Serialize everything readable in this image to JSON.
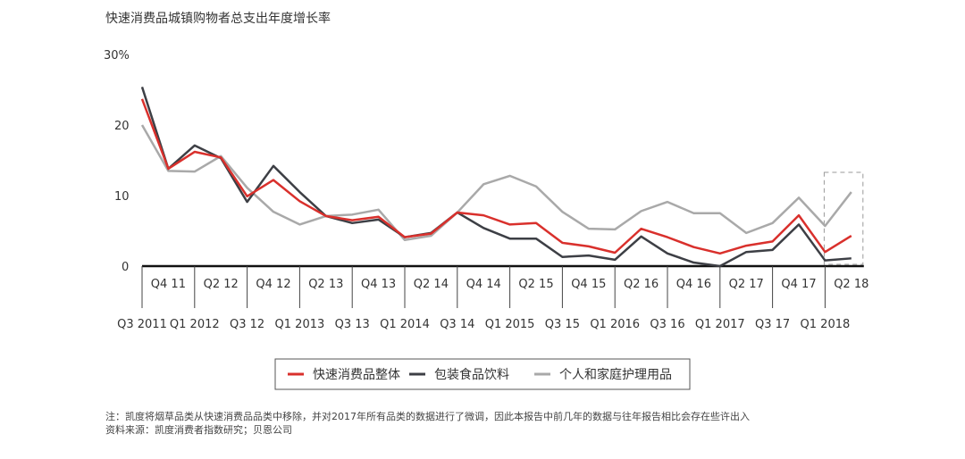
{
  "chart_data": {
    "type": "line",
    "title": "快速消费品城镇购物者总支出年度增长率",
    "ylabel": "",
    "xlabel": "",
    "ylim": [
      0,
      30
    ],
    "yticks": [
      "0",
      "10",
      "20",
      "30%"
    ],
    "grid": false,
    "legend_position": "bottom",
    "categories": [
      "Q3 2011",
      "Q4 11",
      "Q1 2012",
      "Q2 12",
      "Q3 12",
      "Q4 12",
      "Q1 2013",
      "Q2 13",
      "Q3 13",
      "Q4 13",
      "Q1 2014",
      "Q2 14",
      "Q3 14",
      "Q4 14",
      "Q1 2015",
      "Q2 15",
      "Q3 15",
      "Q4 15",
      "Q1 2016",
      "Q2 16",
      "Q3 16",
      "Q4 16",
      "Q1 2017",
      "Q2 17",
      "Q3 17",
      "Q4 17",
      "Q1 2018",
      "Q2 18"
    ],
    "series": [
      {
        "name": "快速消费品整体",
        "color": "#d9302c",
        "values": [
          23.7,
          13.8,
          16.2,
          15.4,
          9.9,
          12.2,
          9.2,
          7.1,
          6.5,
          7.0,
          4.1,
          4.6,
          7.6,
          7.2,
          5.9,
          6.1,
          3.3,
          2.8,
          1.9,
          5.3,
          4.1,
          2.7,
          1.8,
          2.9,
          3.5,
          7.2,
          2.0,
          4.3
        ]
      },
      {
        "name": "包装食品饮料",
        "color": "#3d3f45",
        "values": [
          25.4,
          13.8,
          17.1,
          15.3,
          9.1,
          14.2,
          10.5,
          7.1,
          6.1,
          6.6,
          4.1,
          4.7,
          7.6,
          5.4,
          3.9,
          3.9,
          1.3,
          1.5,
          0.9,
          4.2,
          1.8,
          0.5,
          0.0,
          2.0,
          2.3,
          5.9,
          0.8,
          1.1
        ]
      },
      {
        "name": "个人和家庭护理用品",
        "color": "#a9a9a9",
        "values": [
          20.0,
          13.5,
          13.4,
          15.6,
          11.1,
          7.7,
          5.9,
          7.1,
          7.3,
          8.0,
          3.7,
          4.3,
          7.6,
          11.6,
          12.8,
          11.3,
          7.7,
          5.3,
          5.2,
          7.8,
          9.1,
          7.5,
          7.5,
          4.7,
          6.1,
          9.7,
          5.7,
          10.5
        ]
      }
    ],
    "highlight": [
      "Q1 2018",
      "Q2 18"
    ]
  },
  "footnote": {
    "note": "注：凯度将烟草品类从快速消费品品类中移除，并对2017年所有品类的数据进行了微调，因此本报告中前几年的数据与往年报告相比会存在些许出入",
    "source": "资料来源：凯度消费者指数研究；贝恩公司"
  }
}
